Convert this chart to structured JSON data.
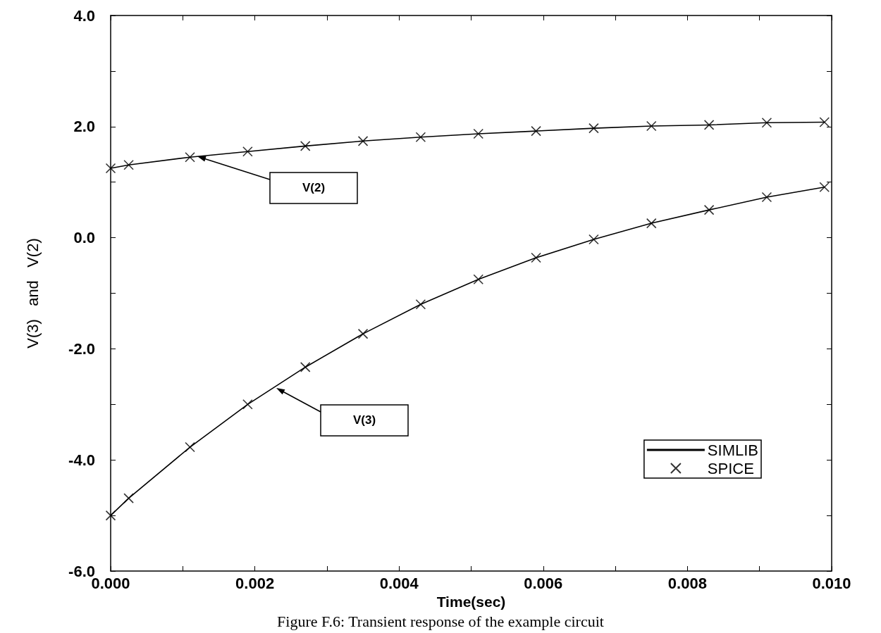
{
  "chart_data": {
    "type": "line",
    "xlabel": "Time(sec)",
    "ylabel": "V(3)   and   V(2)",
    "x": [
      0,
      0.00025,
      0.0011,
      0.0019,
      0.0027,
      0.0035,
      0.0043,
      0.0051,
      0.0059,
      0.0067,
      0.0075,
      0.0083,
      0.0091,
      0.0099
    ],
    "series": [
      {
        "name": "SIMLIB",
        "color": "#000000",
        "line_style": "solid",
        "marker": "none",
        "values": [
          1.25,
          1.31,
          1.45,
          1.55,
          1.65,
          1.74,
          1.81,
          1.87,
          1.92,
          1.97,
          2.01,
          2.03,
          2.07,
          2.08
        ]
      },
      {
        "color": "#000000",
        "line_style": "solid",
        "marker": "none",
        "values": [
          -5.0,
          -4.69,
          -3.77,
          -3.0,
          -2.33,
          -1.73,
          -1.2,
          -0.75,
          -0.36,
          -0.03,
          0.26,
          0.5,
          0.73,
          0.91
        ]
      },
      {
        "name": "SPICE",
        "type": "scatter",
        "color": "#000000",
        "marker": "cross",
        "values": [
          1.25,
          1.31,
          1.45,
          1.55,
          1.65,
          1.74,
          1.81,
          1.87,
          1.92,
          1.97,
          2.01,
          2.03,
          2.07,
          2.08
        ]
      },
      {
        "type": "scatter",
        "color": "#000000",
        "marker": "cross",
        "values": [
          -5.0,
          -4.69,
          -3.77,
          -3.0,
          -2.33,
          -1.73,
          -1.2,
          -0.75,
          -0.36,
          -0.03,
          0.26,
          0.5,
          0.73,
          0.91
        ]
      }
    ],
    "xlim": [
      0,
      0.01
    ],
    "xticks": [
      {
        "value": 0,
        "label": "0.000"
      },
      {
        "value": 0.001,
        "label": null
      },
      {
        "value": 0.002,
        "label": "0.002"
      },
      {
        "value": 0.003,
        "label": null
      },
      {
        "value": 0.004,
        "label": "0.004"
      },
      {
        "value": 0.005,
        "label": null
      },
      {
        "value": 0.006,
        "label": "0.006"
      },
      {
        "value": 0.007,
        "label": null
      },
      {
        "value": 0.008,
        "label": "0.008"
      },
      {
        "value": 0.009,
        "label": null
      },
      {
        "value": 0.01,
        "label": "0.010"
      }
    ],
    "ylim": [
      -6,
      4
    ],
    "yticks": [
      {
        "value": -6,
        "label": "-6.0"
      },
      {
        "value": -5,
        "label": null
      },
      {
        "value": -4,
        "label": "-4.0"
      },
      {
        "value": -3,
        "label": null
      },
      {
        "value": -2,
        "label": "-2.0"
      },
      {
        "value": -1,
        "label": null
      },
      {
        "value": 0,
        "label": "0.0"
      },
      {
        "value": 1,
        "label": null
      },
      {
        "value": 2,
        "label": "2.0"
      },
      {
        "value": 3,
        "label": null
      },
      {
        "value": 4,
        "label": "4.0"
      }
    ],
    "grid": false,
    "legend": "bottom right",
    "annotations": [
      "V(2)",
      "V(3)",
      "Figure F.6: Transient response of the example circuit"
    ]
  }
}
